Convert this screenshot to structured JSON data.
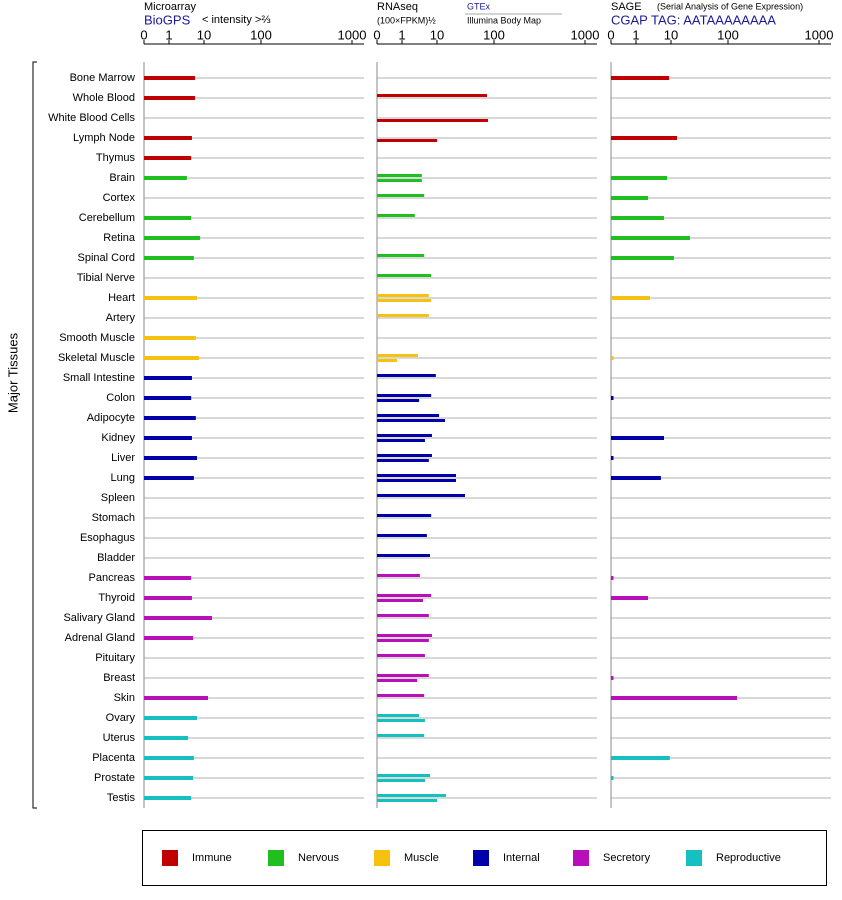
{
  "chart_data": {
    "type": "bar",
    "category_axis_label": "Major Tissues",
    "categories": [
      "Bone Marrow",
      "Whole Blood",
      "White Blood Cells",
      "Lymph Node",
      "Thymus",
      "Brain",
      "Cortex",
      "Cerebellum",
      "Retina",
      "Spinal Cord",
      "Tibial Nerve",
      "Heart",
      "Artery",
      "Smooth Muscle",
      "Skeletal Muscle",
      "Small Intestine",
      "Colon",
      "Adipocyte",
      "Kidney",
      "Liver",
      "Lung",
      "Spleen",
      "Stomach",
      "Esophagus",
      "Bladder",
      "Pancreas",
      "Thyroid",
      "Salivary Gland",
      "Adrenal Gland",
      "Pituitary",
      "Breast",
      "Skin",
      "Ovary",
      "Uterus",
      "Placenta",
      "Prostate",
      "Testis"
    ],
    "category_groups": [
      0,
      0,
      0,
      0,
      0,
      1,
      1,
      1,
      1,
      1,
      1,
      2,
      2,
      2,
      2,
      3,
      3,
      3,
      3,
      3,
      3,
      3,
      3,
      3,
      3,
      4,
      4,
      4,
      4,
      4,
      4,
      4,
      5,
      5,
      5,
      5,
      5
    ],
    "groups": [
      {
        "name": "Immune",
        "color": "#c00000"
      },
      {
        "name": "Nervous",
        "color": "#1fbf1f"
      },
      {
        "name": "Muscle",
        "color": "#f7c10f"
      },
      {
        "name": "Internal",
        "color": "#0000aa"
      },
      {
        "name": "Secretory",
        "color": "#b90fbb"
      },
      {
        "name": "Reproductive",
        "color": "#14c0c0"
      }
    ],
    "panels": [
      {
        "title": "Microarray",
        "source": "BioGPS",
        "unit": "< intensity >⅔",
        "xlim": [
          0,
          1000
        ],
        "xticks": [
          0,
          1,
          10,
          100,
          1000
        ],
        "series": [
          {
            "values": [
              7.7,
              7.7,
              null,
              6.9,
              6.7,
              5.6,
              null,
              6.7,
              9.0,
              7.4,
              null,
              8.2,
              null,
              7.9,
              8.7,
              6.9,
              6.7,
              7.9,
              6.9,
              8.2,
              7.4,
              null,
              null,
              null,
              null,
              6.7,
              6.9,
              22.6,
              7.2,
              null,
              null,
              16.3,
              8.2,
              5.9,
              7.4,
              7.2,
              6.7
            ]
          }
        ]
      },
      {
        "title": "RNAseq",
        "unit": "(100×FPKM)½",
        "xlim": [
          0,
          1000
        ],
        "xticks": [
          0,
          1,
          10,
          100,
          1000
        ],
        "series": [
          {
            "name": "GTEx",
            "values": [
              null,
              89,
              null,
              null,
              null,
              6.1,
              6.7,
              4.3,
              null,
              6.7,
              8.5,
              7.9,
              7.9,
              null,
              5.1,
              9.7,
              8.5,
              13.2,
              8.7,
              8.7,
              40,
              54.2,
              8.5,
              7.4,
              8.2,
              5.6,
              8.5,
              7.9,
              8.7,
              6.9,
              7.9,
              6.7,
              5.4,
              6.7,
              null,
              8.2,
              24.2
            ]
          },
          {
            "name": "Illumina Body Map",
            "values": [
              null,
              null,
              90.5,
              10.2,
              null,
              6.1,
              null,
              null,
              null,
              null,
              null,
              8.5,
              null,
              null,
              0.8,
              null,
              5.4,
              22.6,
              6.9,
              7.9,
              40,
              null,
              null,
              null,
              null,
              null,
              6.4,
              null,
              7.9,
              null,
              4.9,
              null,
              6.9,
              null,
              null,
              6.9,
              10
            ]
          }
        ]
      },
      {
        "title": "SAGE",
        "subtitle": "(Serial Analysis of Gene Expression)",
        "source": "CGAP TAG: AATAAAAAAAA",
        "xlim": [
          0,
          1000
        ],
        "xticks": [
          0,
          1,
          10,
          100,
          1000
        ],
        "series": [
          {
            "values": [
              9.5,
              null,
              null,
              19.5,
              null,
              9.0,
              4.1,
              8.2,
              40,
              14.7,
              null,
              4.6,
              null,
              null,
              0.1,
              null,
              0.1,
              null,
              8.2,
              0.1,
              7.4,
              null,
              null,
              null,
              null,
              0.1,
              4.1,
              null,
              null,
              null,
              0.1,
              189,
              null,
              null,
              9.7,
              0.1,
              null
            ]
          }
        ]
      }
    ]
  }
}
